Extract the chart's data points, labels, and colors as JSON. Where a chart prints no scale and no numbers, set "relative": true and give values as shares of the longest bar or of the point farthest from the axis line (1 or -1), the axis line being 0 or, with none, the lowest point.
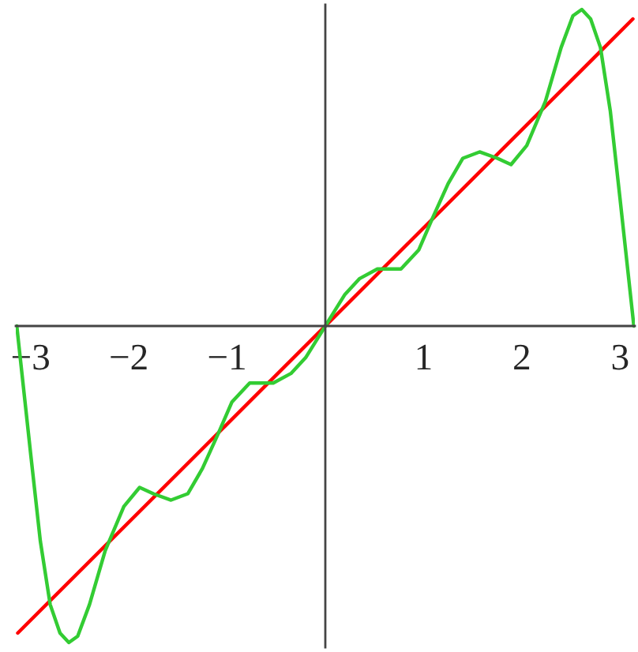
{
  "chart_data": {
    "type": "line",
    "relative": true,
    "tick_labels": "x",
    "xlim": [
      -3.15,
      3.15
    ],
    "xticks": [
      {
        "value": -3,
        "label": "−3"
      },
      {
        "value": -2,
        "label": "−2"
      },
      {
        "value": -1,
        "label": "−1"
      },
      1,
      2,
      3
    ],
    "grid": false,
    "legend": false,
    "marker": "none",
    "line_style": "solid",
    "series": [
      {
        "color": "#ff0000",
        "x": [
          -3.13,
          3.13
        ],
        "values": [
          -0.97,
          0.97
        ]
      },
      {
        "color": "#33cc33",
        "x": [
          -3.14,
          -3.0,
          -2.9,
          -2.8,
          -2.7,
          -2.61,
          -2.52,
          -2.4,
          -2.24,
          -2.05,
          -1.89,
          -1.75,
          -1.57,
          -1.4,
          -1.25,
          -1.09,
          -0.95,
          -0.77,
          -0.53,
          -0.35,
          -0.2,
          -0.1,
          0,
          0.1,
          0.2,
          0.35,
          0.53,
          0.77,
          0.95,
          1.09,
          1.25,
          1.4,
          1.57,
          1.75,
          1.89,
          2.05,
          2.24,
          2.4,
          2.52,
          2.61,
          2.7,
          2.8,
          2.9,
          3.0,
          3.14
        ],
        "values": [
          0,
          -0.4,
          -0.68,
          -0.88,
          -0.97,
          -1.0,
          -0.98,
          -0.88,
          -0.71,
          -0.57,
          -0.51,
          -0.53,
          -0.55,
          -0.53,
          -0.45,
          -0.34,
          -0.24,
          -0.18,
          -0.18,
          -0.15,
          -0.1,
          -0.05,
          0,
          0.05,
          0.1,
          0.15,
          0.18,
          0.18,
          0.24,
          0.34,
          0.45,
          0.53,
          0.55,
          0.53,
          0.51,
          0.57,
          0.71,
          0.88,
          0.98,
          1.0,
          0.97,
          0.88,
          0.68,
          0.4,
          0
        ]
      }
    ]
  }
}
